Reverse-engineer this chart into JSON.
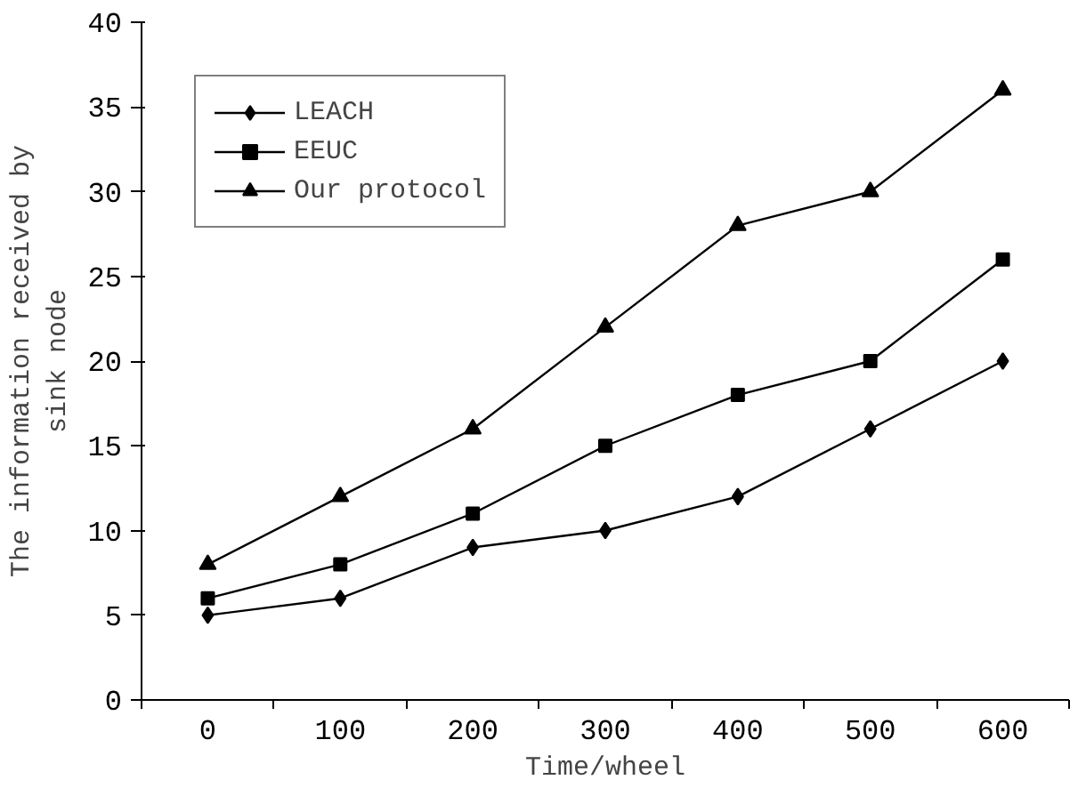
{
  "chart_data": {
    "type": "line",
    "xlabel": "Time/wheel",
    "ylabel": "The information received by\nsink node",
    "categories": [
      "0",
      "100",
      "200",
      "300",
      "400",
      "500",
      "600"
    ],
    "series": [
      {
        "name": "LEACH",
        "color": "#000000",
        "marker": "diamond",
        "values": [
          5,
          6,
          9,
          10,
          12,
          16,
          20
        ]
      },
      {
        "name": "EEUC",
        "color": "#000000",
        "marker": "square",
        "values": [
          6,
          8,
          11,
          15,
          18,
          20,
          26
        ]
      },
      {
        "name": "Our protocol",
        "color": "#000000",
        "marker": "triangle",
        "values": [
          8,
          12,
          16,
          22,
          28,
          30,
          36
        ]
      }
    ],
    "ylim": [
      0,
      40
    ],
    "yticks": [
      0,
      5,
      10,
      15,
      20,
      25,
      30,
      35,
      40
    ],
    "grid": false,
    "legend": "top left",
    "line_style": "solid"
  }
}
